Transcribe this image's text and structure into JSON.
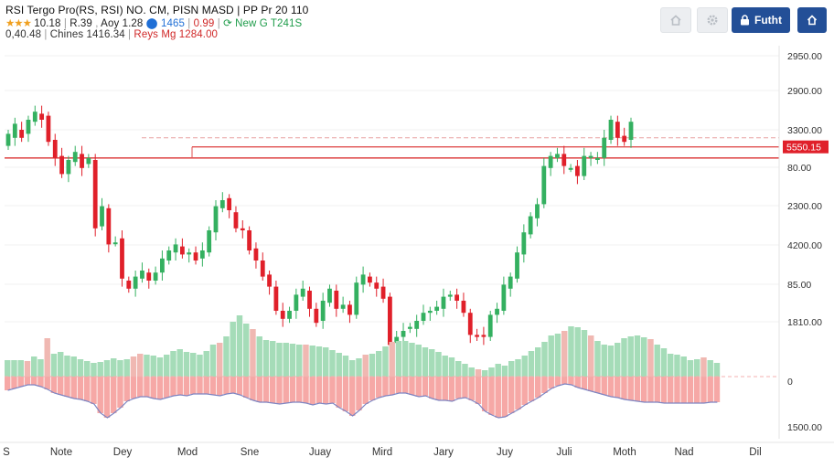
{
  "header": {
    "line1": "RSI Tergo Pro(RS, RSI) NO. CM, PISN MASD | PP Pr 20   110",
    "line2": {
      "stars": "★★★",
      "rating": "10.18",
      "r1": "R.39",
      "r2": "Aoy 1.28",
      "r3": "1465",
      "r4": "0.99",
      "r5": "New",
      "r6": "T241S"
    },
    "line3": {
      "value": "0,40.48",
      "chips": "Chines  1416.34",
      "range": "Reys Mg 1284.00"
    }
  },
  "toolbar": {
    "home_icon": "home-icon",
    "gear_icon": "gear-icon",
    "button_label": "Futht",
    "button_icon": "lock-icon",
    "share_icon": "share-icon"
  },
  "chart_data": [
    {
      "type": "candlestick",
      "title": "",
      "price_labels": [
        "2950.00",
        "2900.00",
        "3300.00",
        "80.00",
        "2300.00",
        "4200.00",
        "85.00",
        "1810.00"
      ],
      "current_price_label": "5550.15",
      "colors": {
        "up": "#34b060",
        "down": "#e0202a",
        "line": "#e05050"
      },
      "candles": [
        {
          "o": 97,
          "c": 103
        },
        {
          "o": 101,
          "c": 108
        },
        {
          "o": 105,
          "c": 101
        },
        {
          "o": 103,
          "c": 110
        },
        {
          "o": 109,
          "c": 114
        },
        {
          "o": 113,
          "c": 110
        },
        {
          "o": 112,
          "c": 99
        },
        {
          "o": 100,
          "c": 91
        },
        {
          "o": 92,
          "c": 83
        },
        {
          "o": 83,
          "c": 90
        },
        {
          "o": 89,
          "c": 94
        },
        {
          "o": 93,
          "c": 86
        },
        {
          "o": 88,
          "c": 91
        },
        {
          "o": 90,
          "c": 56
        },
        {
          "o": 57,
          "c": 67
        },
        {
          "o": 66,
          "c": 48
        },
        {
          "o": 49,
          "c": 49
        },
        {
          "o": 51,
          "c": 31
        },
        {
          "o": 30,
          "c": 26
        },
        {
          "o": 26,
          "c": 32
        },
        {
          "o": 31,
          "c": 35
        },
        {
          "o": 34,
          "c": 30
        },
        {
          "o": 30,
          "c": 34
        },
        {
          "o": 34,
          "c": 41
        },
        {
          "o": 40,
          "c": 45
        },
        {
          "o": 44,
          "c": 48
        },
        {
          "o": 47,
          "c": 43
        },
        {
          "o": 43,
          "c": 44
        },
        {
          "o": 44,
          "c": 40
        },
        {
          "o": 41,
          "c": 45
        },
        {
          "o": 44,
          "c": 55
        },
        {
          "o": 54,
          "c": 67
        },
        {
          "o": 66,
          "c": 70
        },
        {
          "o": 71,
          "c": 65
        },
        {
          "o": 64,
          "c": 56
        },
        {
          "o": 56,
          "c": 55
        },
        {
          "o": 55,
          "c": 45
        },
        {
          "o": 46,
          "c": 40
        },
        {
          "o": 40,
          "c": 32
        },
        {
          "o": 33,
          "c": 27
        },
        {
          "o": 27,
          "c": 15
        },
        {
          "o": 15,
          "c": 11
        },
        {
          "o": 11,
          "c": 15
        },
        {
          "o": 15,
          "c": 23
        },
        {
          "o": 22,
          "c": 26
        },
        {
          "o": 25,
          "c": 16
        },
        {
          "o": 16,
          "c": 9
        },
        {
          "o": 10,
          "c": 20
        },
        {
          "o": 19,
          "c": 26
        },
        {
          "o": 25,
          "c": 16
        },
        {
          "o": 16,
          "c": 18
        },
        {
          "o": 18,
          "c": 13
        },
        {
          "o": 13,
          "c": 29
        },
        {
          "o": 28,
          "c": 33
        },
        {
          "o": 32,
          "c": 29
        },
        {
          "o": 29,
          "c": 26
        },
        {
          "o": 27,
          "c": 21
        },
        {
          "o": 22,
          "c": -2
        },
        {
          "o": -1,
          "c": 2
        },
        {
          "o": 2,
          "c": 5
        },
        {
          "o": 6,
          "c": 7
        },
        {
          "o": 6,
          "c": 10
        },
        {
          "o": 10,
          "c": 14
        },
        {
          "o": 14,
          "c": 15
        },
        {
          "o": 15,
          "c": 17
        },
        {
          "o": 16,
          "c": 22
        },
        {
          "o": 22,
          "c": 23
        },
        {
          "o": 23,
          "c": 20
        },
        {
          "o": 20,
          "c": 14
        },
        {
          "o": 14,
          "c": 3
        },
        {
          "o": 3,
          "c": 2
        },
        {
          "o": 3,
          "c": 2
        },
        {
          "o": 2,
          "c": 13
        },
        {
          "o": 13,
          "c": 16
        },
        {
          "o": 15,
          "c": 28
        },
        {
          "o": 26,
          "c": 32
        },
        {
          "o": 31,
          "c": 44
        },
        {
          "o": 43,
          "c": 54
        },
        {
          "o": 53,
          "c": 62
        },
        {
          "o": 61,
          "c": 68
        },
        {
          "o": 68,
          "c": 87
        },
        {
          "o": 86,
          "c": 92
        },
        {
          "o": 91,
          "c": 93
        },
        {
          "o": 93,
          "c": 87
        },
        {
          "o": 86,
          "c": 86
        },
        {
          "o": 87,
          "c": 82
        },
        {
          "o": 82,
          "c": 92
        },
        {
          "o": 91,
          "c": 92
        },
        {
          "o": 90,
          "c": 91
        },
        {
          "o": 91,
          "c": 101
        },
        {
          "o": 100,
          "c": 110
        },
        {
          "o": 109,
          "c": 101
        },
        {
          "o": 102,
          "c": 99
        },
        {
          "o": 100,
          "c": 109
        }
      ],
      "resistance_levels": [
        91,
        101
      ]
    },
    {
      "type": "bar",
      "title": "",
      "indicator_labels": [
        "0",
        "1500.00"
      ],
      "positive": [
        18,
        18,
        18,
        17,
        22,
        19,
        42,
        25,
        27,
        23,
        22,
        19,
        17,
        15,
        16,
        18,
        20,
        18,
        19,
        22,
        25,
        24,
        23,
        21,
        24,
        28,
        30,
        27,
        26,
        24,
        28,
        35,
        37,
        44,
        60,
        67,
        58,
        52,
        44,
        40,
        39,
        37,
        37,
        36,
        35,
        35,
        34,
        33,
        32,
        29,
        26,
        23,
        18,
        20,
        24,
        25,
        28,
        33,
        38,
        39,
        39,
        37,
        35,
        32,
        30,
        27,
        23,
        21,
        17,
        14,
        10,
        8,
        7,
        10,
        14,
        12,
        17,
        19,
        23,
        28,
        32,
        38,
        45,
        47,
        50,
        55,
        54,
        51,
        45,
        39,
        35,
        34,
        37,
        42,
        44,
        45,
        43,
        41,
        35,
        31,
        25,
        24,
        22,
        18,
        19,
        21,
        18,
        15
      ],
      "negative": [
        15,
        13,
        11,
        9,
        9,
        11,
        14,
        18,
        20,
        22,
        24,
        25,
        27,
        30,
        40,
        45,
        40,
        34,
        27,
        24,
        22,
        22,
        24,
        25,
        23,
        21,
        20,
        21,
        19,
        19,
        19,
        20,
        21,
        19,
        18,
        20,
        23,
        26,
        28,
        28,
        29,
        30,
        29,
        28,
        28,
        29,
        31,
        29,
        30,
        29,
        34,
        38,
        43,
        37,
        30,
        26,
        23,
        21,
        20,
        18,
        18,
        20,
        22,
        21,
        24,
        26,
        26,
        27,
        24,
        23,
        26,
        30,
        38,
        42,
        45,
        44,
        40,
        36,
        31,
        27,
        23,
        18,
        13,
        10,
        8,
        9,
        12,
        14,
        16,
        18,
        20,
        22,
        23,
        25,
        26,
        27,
        28,
        28,
        28,
        29,
        29,
        29,
        29,
        29,
        29,
        29,
        28,
        28
      ]
    },
    {
      "type": "axis",
      "x_tick_labels": [
        "S",
        "Note",
        "Dey",
        "Mod",
        "Sne",
        "Juay",
        "Mird",
        "Jary",
        "Juy",
        "Juli",
        "Moth",
        "Nad",
        "Dil"
      ]
    }
  ]
}
